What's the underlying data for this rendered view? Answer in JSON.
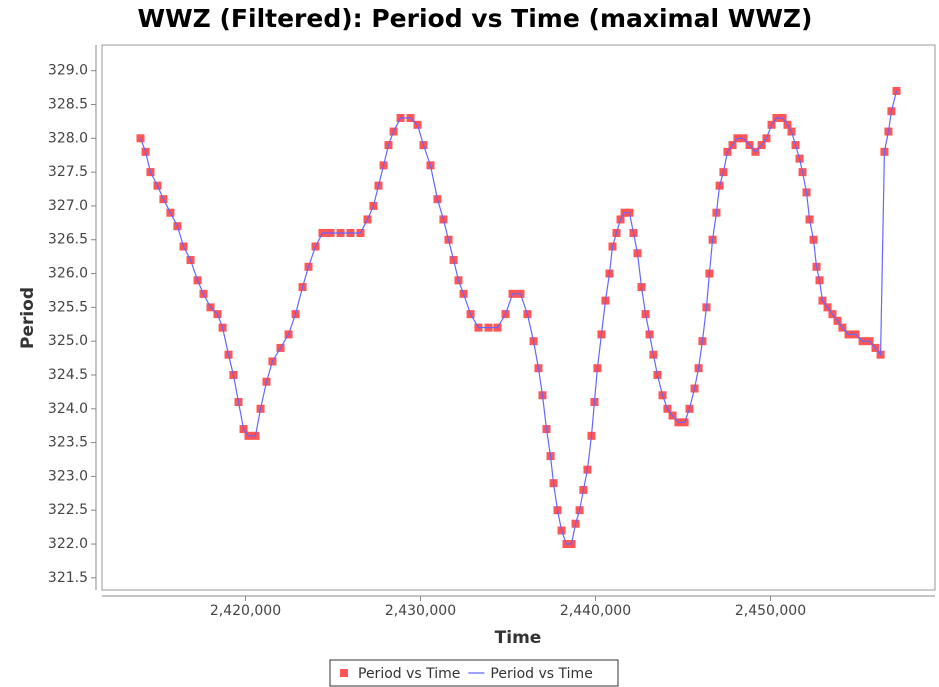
{
  "chart_data": {
    "type": "line",
    "title": "WWZ (Filtered): Period vs Time (maximal WWZ)",
    "x_label": "Time",
    "y_label": "Period",
    "xlim": [
      2411800,
      2459400
    ],
    "ylim": [
      321.32,
      329.38
    ],
    "xticks": [
      {
        "value": 2420000,
        "label": "2,420,000"
      },
      {
        "value": 2430000,
        "label": "2,430,000"
      },
      {
        "value": 2440000,
        "label": "2,440,000"
      },
      {
        "value": 2450000,
        "label": "2,450,000"
      }
    ],
    "yticks": [
      {
        "value": 321.5,
        "label": "321.5"
      },
      {
        "value": 322,
        "label": "322.0"
      },
      {
        "value": 322.5,
        "label": "322.5"
      },
      {
        "value": 323,
        "label": "323.0"
      },
      {
        "value": 323.5,
        "label": "323.5"
      },
      {
        "value": 324,
        "label": "324.0"
      },
      {
        "value": 324.5,
        "label": "324.5"
      },
      {
        "value": 325,
        "label": "325.0"
      },
      {
        "value": 325.5,
        "label": "325.5"
      },
      {
        "value": 326,
        "label": "326.0"
      },
      {
        "value": 326.5,
        "label": "326.5"
      },
      {
        "value": 327,
        "label": "327.0"
      },
      {
        "value": 327.5,
        "label": "327.5"
      },
      {
        "value": 328,
        "label": "328.0"
      },
      {
        "value": 328.5,
        "label": "328.5"
      },
      {
        "value": 329,
        "label": "329.0"
      }
    ],
    "grid": false,
    "legend": "bottom",
    "x": [
      2414000,
      2414290,
      2414570,
      2414970,
      2415310,
      2415710,
      2416110,
      2416460,
      2416860,
      2417260,
      2417600,
      2418000,
      2418400,
      2418690,
      2419030,
      2419310,
      2419600,
      2419890,
      2420170,
      2420570,
      2420860,
      2421200,
      2421540,
      2422000,
      2422460,
      2422860,
      2423260,
      2423600,
      2424000,
      2424400,
      2424860,
      2425430,
      2426000,
      2426570,
      2426970,
      2427310,
      2427600,
      2427890,
      2428170,
      2428460,
      2428860,
      2429430,
      2429830,
      2430170,
      2430570,
      2430970,
      2431310,
      2431600,
      2431890,
      2432170,
      2432460,
      2432860,
      2433310,
      2433890,
      2434400,
      2434860,
      2435260,
      2435710,
      2436110,
      2436460,
      2436740,
      2436970,
      2437200,
      2437430,
      2437600,
      2437830,
      2438060,
      2438340,
      2438630,
      2438860,
      2439090,
      2439310,
      2439540,
      2439770,
      2439940,
      2440110,
      2440340,
      2440570,
      2440800,
      2440970,
      2441200,
      2441430,
      2441660,
      2441940,
      2442170,
      2442400,
      2442630,
      2442860,
      2443090,
      2443310,
      2443540,
      2443830,
      2444110,
      2444400,
      2444740,
      2445090,
      2445370,
      2445660,
      2445890,
      2446110,
      2446340,
      2446510,
      2446690,
      2446910,
      2447090,
      2447310,
      2447540,
      2447830,
      2448110,
      2448460,
      2448800,
      2449140,
      2449490,
      2449770,
      2450060,
      2450340,
      2450690,
      2450970,
      2451200,
      2451430,
      2451660,
      2451830,
      2452060,
      2452230,
      2452460,
      2452630,
      2452800,
      2452970,
      2453260,
      2453540,
      2453830,
      2454110,
      2454460,
      2454860,
      2455260,
      2455660,
      2456000,
      2456290,
      2456510,
      2456740,
      2456910,
      2457200
    ],
    "series": [
      {
        "name": "Period vs Time",
        "type": "scatter",
        "color": "#ff5555",
        "values": [
          328.0,
          327.8,
          327.5,
          327.3,
          327.1,
          326.9,
          326.7,
          326.4,
          326.2,
          325.9,
          325.7,
          325.5,
          325.4,
          325.2,
          324.8,
          324.5,
          324.1,
          323.7,
          323.6,
          323.6,
          324.0,
          324.4,
          324.7,
          324.9,
          325.1,
          325.4,
          325.8,
          326.1,
          326.4,
          326.6,
          326.6,
          326.6,
          326.6,
          326.6,
          326.8,
          327.0,
          327.3,
          327.6,
          327.9,
          328.1,
          328.3,
          328.3,
          328.2,
          327.9,
          327.6,
          327.1,
          326.8,
          326.5,
          326.2,
          325.9,
          325.7,
          325.4,
          325.2,
          325.2,
          325.2,
          325.4,
          325.7,
          325.7,
          325.4,
          325.0,
          324.6,
          324.2,
          323.7,
          323.3,
          322.9,
          322.5,
          322.2,
          322.0,
          322.0,
          322.3,
          322.5,
          322.8,
          323.1,
          323.6,
          324.1,
          324.6,
          325.1,
          325.6,
          326.0,
          326.4,
          326.6,
          326.8,
          326.9,
          326.9,
          326.6,
          326.3,
          325.8,
          325.4,
          325.1,
          324.8,
          324.5,
          324.2,
          324.0,
          323.9,
          323.8,
          323.8,
          324.0,
          324.3,
          324.6,
          325.0,
          325.5,
          326.0,
          326.5,
          326.9,
          327.3,
          327.5,
          327.8,
          327.9,
          328.0,
          328.0,
          327.9,
          327.8,
          327.9,
          328.0,
          328.2,
          328.3,
          328.3,
          328.2,
          328.1,
          327.9,
          327.7,
          327.5,
          327.2,
          326.8,
          326.5,
          326.1,
          325.9,
          325.6,
          325.5,
          325.4,
          325.3,
          325.2,
          325.1,
          325.1,
          325.0,
          325.0,
          324.9,
          324.8,
          327.8,
          328.1,
          328.4,
          328.7
        ]
      },
      {
        "name": "Period vs Time",
        "type": "line",
        "color": "#6666ff",
        "values": [
          328.0,
          327.8,
          327.5,
          327.3,
          327.1,
          326.9,
          326.7,
          326.4,
          326.2,
          325.9,
          325.7,
          325.5,
          325.4,
          325.2,
          324.8,
          324.5,
          324.1,
          323.7,
          323.6,
          323.6,
          324.0,
          324.4,
          324.7,
          324.9,
          325.1,
          325.4,
          325.8,
          326.1,
          326.4,
          326.6,
          326.6,
          326.6,
          326.6,
          326.6,
          326.8,
          327.0,
          327.3,
          327.6,
          327.9,
          328.1,
          328.3,
          328.3,
          328.2,
          327.9,
          327.6,
          327.1,
          326.8,
          326.5,
          326.2,
          325.9,
          325.7,
          325.4,
          325.2,
          325.2,
          325.2,
          325.4,
          325.7,
          325.7,
          325.4,
          325.0,
          324.6,
          324.2,
          323.7,
          323.3,
          322.9,
          322.5,
          322.2,
          322.0,
          322.0,
          322.3,
          322.5,
          322.8,
          323.1,
          323.6,
          324.1,
          324.6,
          325.1,
          325.6,
          326.0,
          326.4,
          326.6,
          326.8,
          326.9,
          326.9,
          326.6,
          326.3,
          325.8,
          325.4,
          325.1,
          324.8,
          324.5,
          324.2,
          324.0,
          323.9,
          323.8,
          323.8,
          324.0,
          324.3,
          324.6,
          325.0,
          325.5,
          326.0,
          326.5,
          326.9,
          327.3,
          327.5,
          327.8,
          327.9,
          328.0,
          328.0,
          327.9,
          327.8,
          327.9,
          328.0,
          328.2,
          328.3,
          328.3,
          328.2,
          328.1,
          327.9,
          327.7,
          327.5,
          327.2,
          326.8,
          326.5,
          326.1,
          325.9,
          325.6,
          325.5,
          325.4,
          325.3,
          325.2,
          325.1,
          325.1,
          325.0,
          325.0,
          324.9,
          324.8,
          327.8,
          328.1,
          328.4,
          328.7
        ]
      }
    ]
  }
}
